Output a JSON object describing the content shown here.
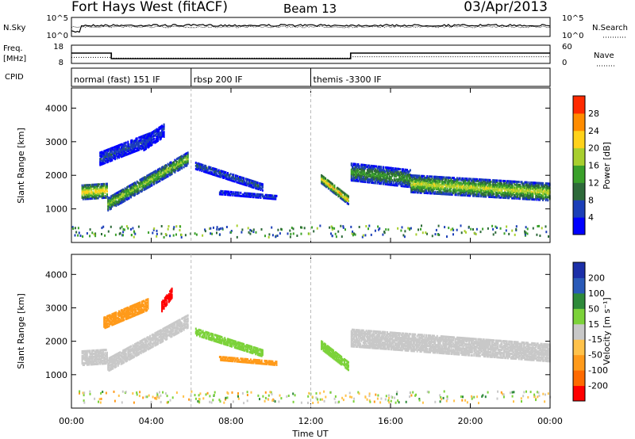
{
  "header": {
    "station": "Fort Hays West (fitACF)",
    "beam": "Beam 13",
    "date": "03/Apr/2013"
  },
  "chart_data": [
    {
      "type": "line",
      "panel": "noise",
      "left_label": "N.Sky",
      "right_label": "N.Search",
      "left_ticks": [
        "10^5",
        "10^0"
      ],
      "right_ticks": [
        "10^5",
        "10^0"
      ],
      "scale": "log"
    },
    {
      "type": "line",
      "panel": "frequency-nave",
      "left_label": "Freq.",
      "left_unit": "[MHz]",
      "left_ticks": [
        "18",
        "8"
      ],
      "right_label": "Nave",
      "right_ticks": [
        "60",
        "0"
      ],
      "freq_steps": [
        {
          "start_h": 0.0,
          "end_h": 2.0,
          "mhz": 14.0
        },
        {
          "start_h": 2.0,
          "end_h": 14.0,
          "mhz": 10.5
        },
        {
          "start_h": 14.0,
          "end_h": 24.0,
          "mhz": 14.0
        }
      ],
      "nave_steps": [
        {
          "start_h": 0.0,
          "end_h": 2.0,
          "value": 20
        },
        {
          "start_h": 2.0,
          "end_h": 14.0,
          "value": 17
        },
        {
          "start_h": 14.0,
          "end_h": 24.0,
          "value": 22
        }
      ]
    },
    {
      "type": "table",
      "panel": "cpid",
      "label": "CPID",
      "segments": [
        {
          "start_h": 0.0,
          "end_h": 6.0,
          "name": "normal (fast) 151 IF"
        },
        {
          "start_h": 6.0,
          "end_h": 12.0,
          "name": "rbsp 200 IF"
        },
        {
          "start_h": 12.0,
          "end_h": 24.0,
          "name": "themis -3300 IF"
        }
      ]
    },
    {
      "type": "heatmap",
      "panel": "power",
      "ylabel": "Slant Range [km]",
      "ylim": [
        0,
        4600
      ],
      "yticks": [
        1000,
        2000,
        3000,
        4000
      ],
      "colorbar_label": "Power [dB]",
      "colorbar_ticks": [
        "4",
        "8",
        "12",
        "16",
        "20",
        "24",
        "28"
      ],
      "colorbar_colors": [
        "#0000ff",
        "#1c3fb8",
        "#2e6a3a",
        "#3aa02a",
        "#a8cf2e",
        "#ffd21a",
        "#ff8c00",
        "#ff2a00"
      ],
      "bands": [
        {
          "start_h": 0.5,
          "end_h": 1.8,
          "range_km": [
            1500,
            1550
          ],
          "thick_km": 420,
          "power_db": 24
        },
        {
          "start_h": 1.8,
          "end_h": 5.8,
          "range_km": [
            1150,
            2500
          ],
          "thick_km": 380,
          "power_db": 18
        },
        {
          "start_h": 1.4,
          "end_h": 4.0,
          "range_km": [
            2500,
            3100
          ],
          "thick_km": 380,
          "power_db": 7
        },
        {
          "start_h": 3.6,
          "end_h": 4.6,
          "range_km": [
            2950,
            3350
          ],
          "thick_km": 400,
          "power_db": 6
        },
        {
          "start_h": 6.2,
          "end_h": 9.6,
          "range_km": [
            2300,
            1650
          ],
          "thick_km": 220,
          "power_db": 8
        },
        {
          "start_h": 7.4,
          "end_h": 10.3,
          "range_km": [
            1500,
            1350
          ],
          "thick_km": 120,
          "power_db": 6
        },
        {
          "start_h": 12.5,
          "end_h": 13.9,
          "range_km": [
            1900,
            1250
          ],
          "thick_km": 260,
          "power_db": 24
        },
        {
          "start_h": 14.0,
          "end_h": 17.0,
          "range_km": [
            2100,
            1900
          ],
          "thick_km": 500,
          "power_db": 14
        },
        {
          "start_h": 17.0,
          "end_h": 24.0,
          "range_km": [
            1750,
            1500
          ],
          "thick_km": 500,
          "power_db": 20
        }
      ]
    },
    {
      "type": "heatmap",
      "panel": "velocity",
      "xlabel": "Time UT",
      "ylabel": "Slant Range [km]",
      "xlim": [
        0,
        24
      ],
      "xticks": [
        "00:00",
        "04:00",
        "08:00",
        "12:00",
        "16:00",
        "20:00",
        "00:00"
      ],
      "ylim": [
        0,
        4600
      ],
      "yticks": [
        1000,
        2000,
        3000,
        4000
      ],
      "colorbar_label": "Velocity [m s⁻¹]",
      "colorbar_ticks": [
        "-200",
        "-100",
        "-50",
        "-15",
        "15",
        "50",
        "100",
        "200"
      ],
      "colorbar_colors": [
        "#ff0000",
        "#ff6a00",
        "#ff9a1a",
        "#ffc24a",
        "#c8c8c8",
        "#7cd23a",
        "#2e8a3a",
        "#2a5ab8",
        "#1c2fa8"
      ],
      "bands": [
        {
          "start_h": 0.5,
          "end_h": 1.8,
          "range_km": [
            1500,
            1550
          ],
          "thick_km": 420,
          "velocity": 0
        },
        {
          "start_h": 1.8,
          "end_h": 5.8,
          "range_km": [
            1300,
            2600
          ],
          "thick_km": 380,
          "velocity": 0
        },
        {
          "start_h": 1.6,
          "end_h": 3.8,
          "range_km": [
            2550,
            3100
          ],
          "thick_km": 320,
          "velocity": -60
        },
        {
          "start_h": 4.5,
          "end_h": 5.0,
          "range_km": [
            3050,
            3450
          ],
          "thick_km": 300,
          "velocity": -250
        },
        {
          "start_h": 6.2,
          "end_h": 9.6,
          "range_km": [
            2300,
            1650
          ],
          "thick_km": 220,
          "velocity": 30
        },
        {
          "start_h": 7.4,
          "end_h": 10.3,
          "range_km": [
            1500,
            1350
          ],
          "thick_km": 120,
          "velocity": -60
        },
        {
          "start_h": 12.5,
          "end_h": 13.9,
          "range_km": [
            1900,
            1250
          ],
          "thick_km": 260,
          "velocity": 30
        },
        {
          "start_h": 14.0,
          "end_h": 24.0,
          "range_km": [
            2100,
            1650
          ],
          "thick_km": 500,
          "velocity": 0
        }
      ]
    }
  ]
}
